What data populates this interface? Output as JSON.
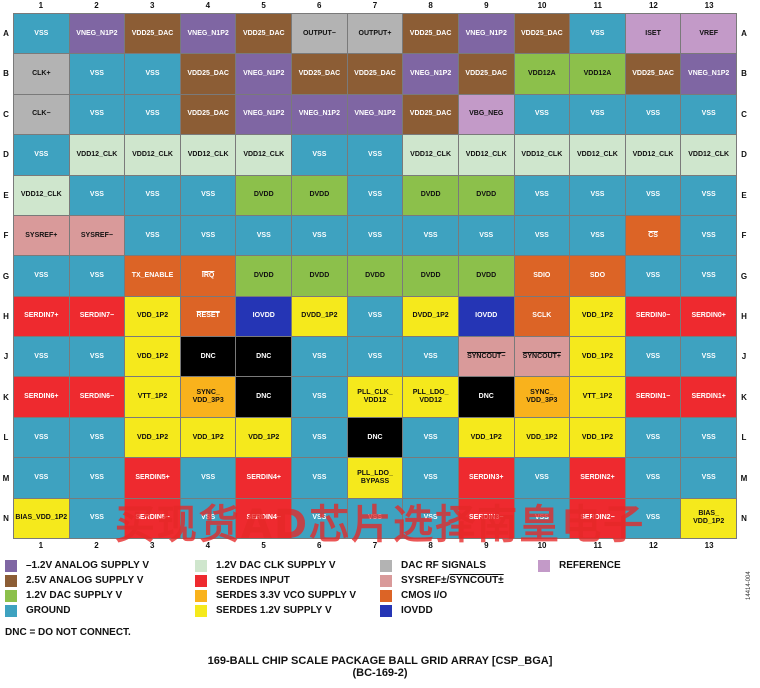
{
  "columns": [
    "1",
    "2",
    "3",
    "4",
    "5",
    "6",
    "7",
    "8",
    "9",
    "10",
    "11",
    "12",
    "13"
  ],
  "rows": [
    "A",
    "B",
    "C",
    "D",
    "E",
    "F",
    "G",
    "H",
    "J",
    "K",
    "L",
    "M",
    "N"
  ],
  "category_colors": {
    "neg12": "#7f66a3",
    "p25": "#8c5d35",
    "p12dac": "#8cc04b",
    "gnd": "#3ea2c0",
    "clk12": "#cfe6cd",
    "serdes_in": "#ee2a2f",
    "serdes_vco": "#f9b21c",
    "serdes12": "#f5e91c",
    "dacrf": "#b3b3b3",
    "sysref": "#d99a9a",
    "cmos": "#dc6426",
    "iovdd": "#2535b5",
    "ref": "#c39ac8",
    "dnc": "#000000"
  },
  "grid": [
    [
      [
        "VSS",
        "gnd"
      ],
      [
        "VNEG_N1P2",
        "neg12"
      ],
      [
        "VDD25_DAC",
        "p25"
      ],
      [
        "VNEG_N1P2",
        "neg12"
      ],
      [
        "VDD25_DAC",
        "p25"
      ],
      [
        "OUTPUT−",
        "dacrf"
      ],
      [
        "OUTPUT+",
        "dacrf"
      ],
      [
        "VDD25_DAC",
        "p25"
      ],
      [
        "VNEG_N1P2",
        "neg12"
      ],
      [
        "VDD25_DAC",
        "p25"
      ],
      [
        "VSS",
        "gnd"
      ],
      [
        "ISET",
        "ref"
      ],
      [
        "VREF",
        "ref"
      ]
    ],
    [
      [
        "CLK+",
        "dacrf"
      ],
      [
        "VSS",
        "gnd"
      ],
      [
        "VSS",
        "gnd"
      ],
      [
        "VDD25_DAC",
        "p25"
      ],
      [
        "VNEG_N1P2",
        "neg12"
      ],
      [
        "VDD25_DAC",
        "p25"
      ],
      [
        "VDD25_DAC",
        "p25"
      ],
      [
        "VNEG_N1P2",
        "neg12"
      ],
      [
        "VDD25_DAC",
        "p25"
      ],
      [
        "VDD12A",
        "p12dac"
      ],
      [
        "VDD12A",
        "p12dac"
      ],
      [
        "VDD25_DAC",
        "p25"
      ],
      [
        "VNEG_N1P2",
        "neg12"
      ]
    ],
    [
      [
        "CLK−",
        "dacrf"
      ],
      [
        "VSS",
        "gnd"
      ],
      [
        "VSS",
        "gnd"
      ],
      [
        "VDD25_DAC",
        "p25"
      ],
      [
        "VNEG_N1P2",
        "neg12"
      ],
      [
        "VNEG_N1P2",
        "neg12"
      ],
      [
        "VNEG_N1P2",
        "neg12"
      ],
      [
        "VDD25_DAC",
        "p25"
      ],
      [
        "VBG_NEG",
        "ref"
      ],
      [
        "VSS",
        "gnd"
      ],
      [
        "VSS",
        "gnd"
      ],
      [
        "VSS",
        "gnd"
      ],
      [
        "VSS",
        "gnd"
      ]
    ],
    [
      [
        "VSS",
        "gnd"
      ],
      [
        "VDD12_CLK",
        "clk12"
      ],
      [
        "VDD12_CLK",
        "clk12"
      ],
      [
        "VDD12_CLK",
        "clk12"
      ],
      [
        "VDD12_CLK",
        "clk12"
      ],
      [
        "VSS",
        "gnd"
      ],
      [
        "VSS",
        "gnd"
      ],
      [
        "VDD12_CLK",
        "clk12"
      ],
      [
        "VDD12_CLK",
        "clk12"
      ],
      [
        "VDD12_CLK",
        "clk12"
      ],
      [
        "VDD12_CLK",
        "clk12"
      ],
      [
        "VDD12_CLK",
        "clk12"
      ],
      [
        "VDD12_CLK",
        "clk12"
      ]
    ],
    [
      [
        "VDD12_CLK",
        "clk12"
      ],
      [
        "VSS",
        "gnd"
      ],
      [
        "VSS",
        "gnd"
      ],
      [
        "VSS",
        "gnd"
      ],
      [
        "DVDD",
        "p12dac"
      ],
      [
        "DVDD",
        "p12dac"
      ],
      [
        "VSS",
        "gnd"
      ],
      [
        "DVDD",
        "p12dac"
      ],
      [
        "DVDD",
        "p12dac"
      ],
      [
        "VSS",
        "gnd"
      ],
      [
        "VSS",
        "gnd"
      ],
      [
        "VSS",
        "gnd"
      ],
      [
        "VSS",
        "gnd"
      ]
    ],
    [
      [
        "SYSREF+",
        "sysref"
      ],
      [
        "SYSREF−",
        "sysref"
      ],
      [
        "VSS",
        "gnd"
      ],
      [
        "VSS",
        "gnd"
      ],
      [
        "VSS",
        "gnd"
      ],
      [
        "VSS",
        "gnd"
      ],
      [
        "VSS",
        "gnd"
      ],
      [
        "VSS",
        "gnd"
      ],
      [
        "VSS",
        "gnd"
      ],
      [
        "VSS",
        "gnd"
      ],
      [
        "VSS",
        "gnd"
      ],
      [
        "CS",
        "cmos",
        "ol"
      ],
      [
        "VSS",
        "gnd"
      ]
    ],
    [
      [
        "VSS",
        "gnd"
      ],
      [
        "VSS",
        "gnd"
      ],
      [
        "TX_ENABLE",
        "cmos"
      ],
      [
        "IRQ",
        "cmos",
        "ol"
      ],
      [
        "DVDD",
        "p12dac"
      ],
      [
        "DVDD",
        "p12dac"
      ],
      [
        "DVDD",
        "p12dac"
      ],
      [
        "DVDD",
        "p12dac"
      ],
      [
        "DVDD",
        "p12dac"
      ],
      [
        "SDIO",
        "cmos"
      ],
      [
        "SDO",
        "cmos"
      ],
      [
        "VSS",
        "gnd"
      ],
      [
        "VSS",
        "gnd"
      ]
    ],
    [
      [
        "SERDIN7+",
        "serdes_in"
      ],
      [
        "SERDIN7−",
        "serdes_in"
      ],
      [
        "VDD_1P2",
        "serdes12"
      ],
      [
        "RESET",
        "cmos",
        "ol"
      ],
      [
        "IOVDD",
        "iovdd"
      ],
      [
        "DVDD_1P2",
        "serdes12"
      ],
      [
        "VSS",
        "gnd"
      ],
      [
        "DVDD_1P2",
        "serdes12"
      ],
      [
        "IOVDD",
        "iovdd"
      ],
      [
        "SCLK",
        "cmos"
      ],
      [
        "VDD_1P2",
        "serdes12"
      ],
      [
        "SERDIN0−",
        "serdes_in"
      ],
      [
        "SERDIN0+",
        "serdes_in"
      ]
    ],
    [
      [
        "VSS",
        "gnd"
      ],
      [
        "VSS",
        "gnd"
      ],
      [
        "VDD_1P2",
        "serdes12"
      ],
      [
        "DNC",
        "dnc"
      ],
      [
        "DNC",
        "dnc"
      ],
      [
        "VSS",
        "gnd"
      ],
      [
        "VSS",
        "gnd"
      ],
      [
        "VSS",
        "gnd"
      ],
      [
        "SYNCOUT−",
        "sysref",
        "ol"
      ],
      [
        "SYNCOUT+",
        "sysref",
        "ol"
      ],
      [
        "VDD_1P2",
        "serdes12"
      ],
      [
        "VSS",
        "gnd"
      ],
      [
        "VSS",
        "gnd"
      ]
    ],
    [
      [
        "SERDIN6+",
        "serdes_in"
      ],
      [
        "SERDIN6−",
        "serdes_in"
      ],
      [
        "VTT_1P2",
        "serdes12"
      ],
      [
        "SYNC_\nVDD_3P3",
        "serdes_vco"
      ],
      [
        "DNC",
        "dnc"
      ],
      [
        "VSS",
        "gnd"
      ],
      [
        "PLL_CLK_\nVDD12",
        "serdes12"
      ],
      [
        "PLL_LDO_\nVDD12",
        "serdes12"
      ],
      [
        "DNC",
        "dnc"
      ],
      [
        "SYNC_\nVDD_3P3",
        "serdes_vco"
      ],
      [
        "VTT_1P2",
        "serdes12"
      ],
      [
        "SERDIN1−",
        "serdes_in"
      ],
      [
        "SERDIN1+",
        "serdes_in"
      ]
    ],
    [
      [
        "VSS",
        "gnd"
      ],
      [
        "VSS",
        "gnd"
      ],
      [
        "VDD_1P2",
        "serdes12"
      ],
      [
        "VDD_1P2",
        "serdes12"
      ],
      [
        "VDD_1P2",
        "serdes12"
      ],
      [
        "VSS",
        "gnd"
      ],
      [
        "DNC",
        "dnc"
      ],
      [
        "VSS",
        "gnd"
      ],
      [
        "VDD_1P2",
        "serdes12"
      ],
      [
        "VDD_1P2",
        "serdes12"
      ],
      [
        "VDD_1P2",
        "serdes12"
      ],
      [
        "VSS",
        "gnd"
      ],
      [
        "VSS",
        "gnd"
      ]
    ],
    [
      [
        "VSS",
        "gnd"
      ],
      [
        "VSS",
        "gnd"
      ],
      [
        "SERDIN5+",
        "serdes_in"
      ],
      [
        "VSS",
        "gnd"
      ],
      [
        "SERDIN4+",
        "serdes_in"
      ],
      [
        "VSS",
        "gnd"
      ],
      [
        "PLL_LDO_\nBYPASS",
        "serdes12"
      ],
      [
        "VSS",
        "gnd"
      ],
      [
        "SERDIN3+",
        "serdes_in"
      ],
      [
        "VSS",
        "gnd"
      ],
      [
        "SERDIN2+",
        "serdes_in"
      ],
      [
        "VSS",
        "gnd"
      ],
      [
        "VSS",
        "gnd"
      ]
    ],
    [
      [
        "BIAS_VDD_1P2",
        "serdes12"
      ],
      [
        "VSS",
        "gnd"
      ],
      [
        "SERDIN5−",
        "serdes_in"
      ],
      [
        "VSS",
        "gnd"
      ],
      [
        "SERDIN4−",
        "serdes_in"
      ],
      [
        "VSS",
        "gnd"
      ],
      [
        "VSS",
        "gnd"
      ],
      [
        "VSS",
        "gnd"
      ],
      [
        "SERDIN3−",
        "serdes_in"
      ],
      [
        "VSS",
        "gnd"
      ],
      [
        "SERDIN2−",
        "serdes_in"
      ],
      [
        "VSS",
        "gnd"
      ],
      [
        "BIAS_\nVDD_1P2",
        "serdes12"
      ]
    ]
  ],
  "light_text_categories": [
    "neg12",
    "p25",
    "gnd",
    "serdes_in",
    "iovdd",
    "dnc",
    "cmos"
  ],
  "legend": [
    {
      "label": "–1.2V ANALOG SUPPLY V",
      "cat": "neg12"
    },
    {
      "label": "2.5V ANALOG SUPPLY V",
      "cat": "p25"
    },
    {
      "label": "1.2V DAC SUPPLY V",
      "cat": "p12dac"
    },
    {
      "label": "GROUND",
      "cat": "gnd"
    },
    {
      "label": "1.2V DAC CLK SUPPLY V",
      "cat": "clk12"
    },
    {
      "label": "SERDES INPUT",
      "cat": "serdes_in"
    },
    {
      "label": "SERDES 3.3V VCO SUPPLY V",
      "cat": "serdes_vco"
    },
    {
      "label": "SERDES 1.2V SUPPLY V",
      "cat": "serdes12"
    },
    {
      "label": "DAC RF SIGNALS",
      "cat": "dacrf"
    },
    {
      "label": "SYSREF±/SYNCOUT±",
      "cat": "sysref",
      "overline_part": "SYNCOUT±",
      "prefix": "SYSREF±/"
    },
    {
      "label": "CMOS I/O",
      "cat": "cmos"
    },
    {
      "label": "IOVDD",
      "cat": "iovdd"
    },
    {
      "label": "REFERENCE",
      "cat": "ref"
    }
  ],
  "note": "DNC = DO NOT CONNECT.",
  "title_line1": "169-BALL CHIP SCALE PACKAGE BALL GRID ARRAY [CSP_BGA]",
  "title_line2": "(BC-169-2)",
  "figure_id": "14414-004",
  "watermark": "买现货AD芯片选择南皇电子"
}
